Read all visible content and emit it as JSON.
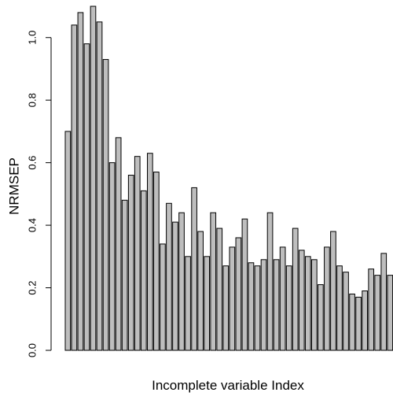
{
  "chart_data": {
    "type": "bar",
    "title": "",
    "xlabel": "Incomplete variable Index",
    "ylabel": "NRMSEP",
    "ylim": [
      0,
      1.1
    ],
    "yticks": [
      "0.0",
      "0.2",
      "0.4",
      "0.6",
      "0.8",
      "1.0"
    ],
    "ytick_values": [
      0.0,
      0.2,
      0.4,
      0.6,
      0.8,
      1.0
    ],
    "grid": false,
    "legend": "none",
    "colors": {
      "bar_fill": "#bebebe",
      "bar_stroke": "#000000",
      "axis": "#000000"
    },
    "values": [
      0.7,
      1.04,
      1.08,
      0.98,
      1.1,
      1.05,
      0.93,
      0.6,
      0.68,
      0.48,
      0.56,
      0.62,
      0.51,
      0.63,
      0.57,
      0.34,
      0.47,
      0.41,
      0.44,
      0.3,
      0.52,
      0.38,
      0.3,
      0.44,
      0.39,
      0.27,
      0.33,
      0.36,
      0.42,
      0.28,
      0.27,
      0.29,
      0.44,
      0.29,
      0.33,
      0.27,
      0.39,
      0.32,
      0.3,
      0.29,
      0.21,
      0.33,
      0.38,
      0.27,
      0.25,
      0.18,
      0.17,
      0.19,
      0.26,
      0.24,
      0.31,
      0.24
    ]
  }
}
